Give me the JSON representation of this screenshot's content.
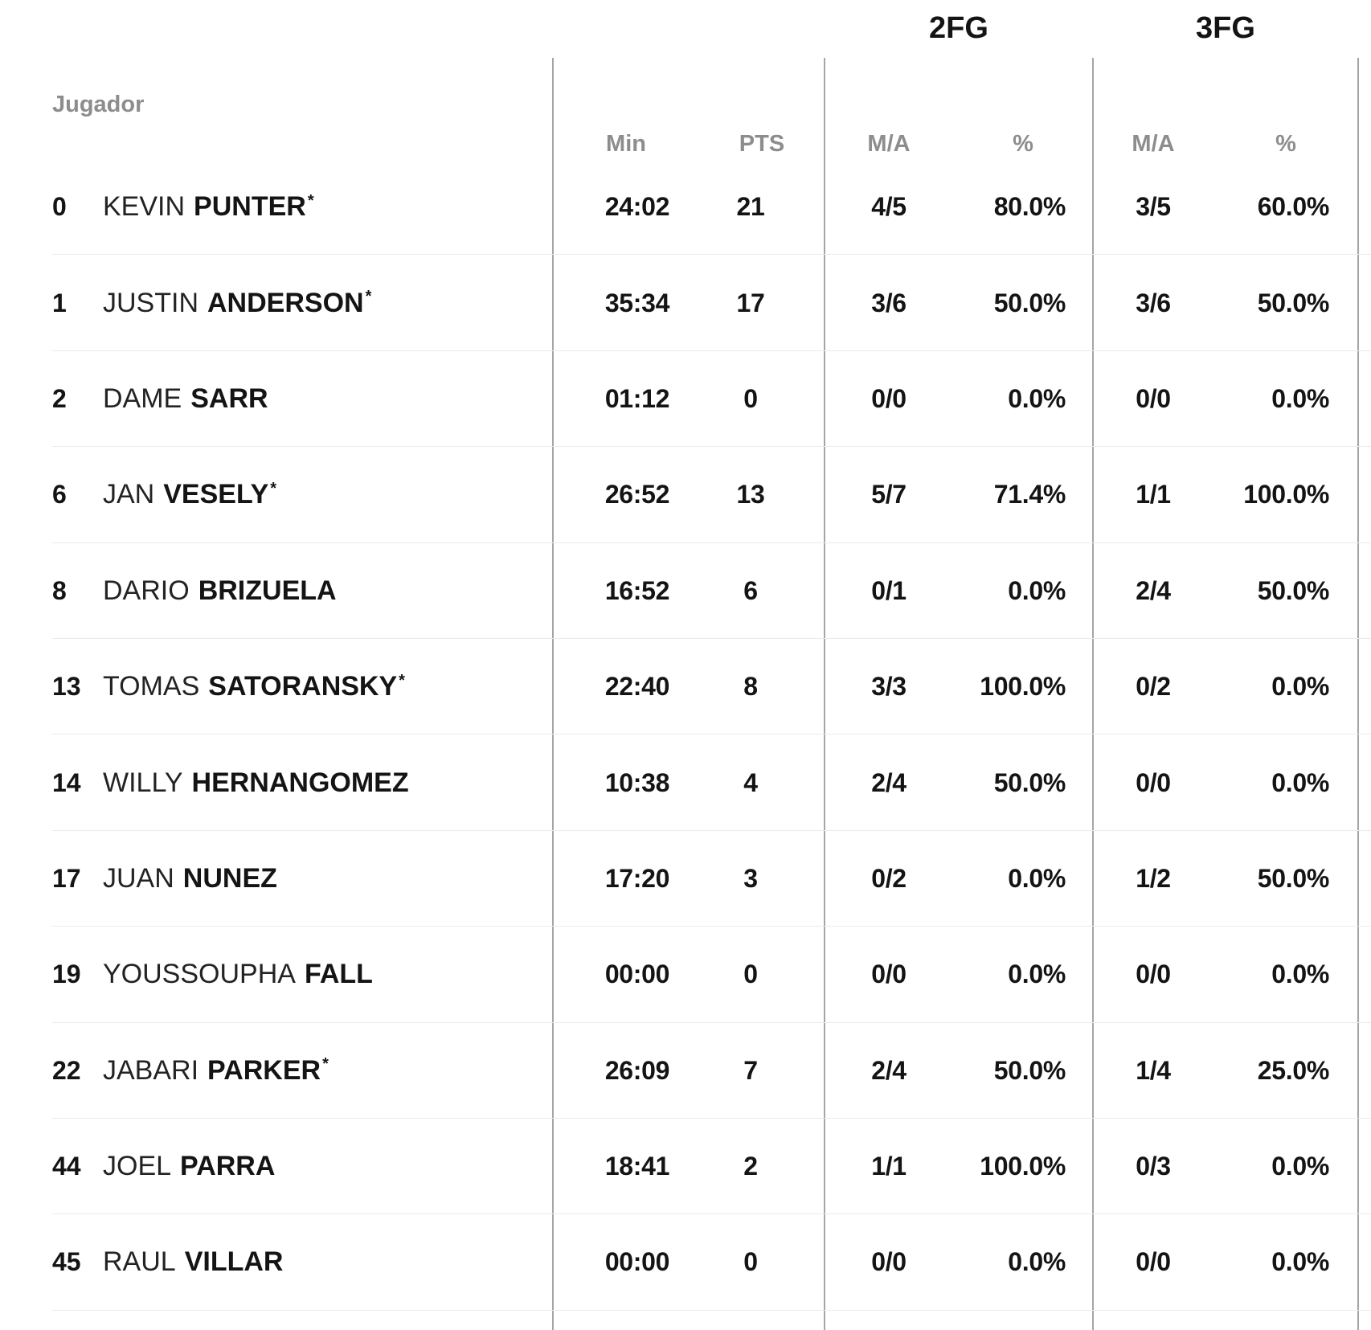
{
  "colors": {
    "background": "#ffffff",
    "text": "#141414",
    "first_name": "#232323",
    "muted_header": "#8d8d8d",
    "column_divider": "#a5a5a5",
    "row_separator": "#ebebeb"
  },
  "table": {
    "player_column_header": "Jugador",
    "group_headers": {
      "fg2": "2FG",
      "fg3": "3FG"
    },
    "sub_headers": {
      "min": "Min",
      "pts": "PTS",
      "ma": "M/A",
      "pct": "%"
    },
    "starter_marker": "*",
    "rows": [
      {
        "number": "0",
        "first_name": "KEVIN",
        "last_name": "PUNTER",
        "starter": true,
        "min": "24:02",
        "pts": "21",
        "fg2_ma": "4/5",
        "fg2_pct": "80.0%",
        "fg3_ma": "3/5",
        "fg3_pct": "60.0%"
      },
      {
        "number": "1",
        "first_name": "JUSTIN",
        "last_name": "ANDERSON",
        "starter": true,
        "min": "35:34",
        "pts": "17",
        "fg2_ma": "3/6",
        "fg2_pct": "50.0%",
        "fg3_ma": "3/6",
        "fg3_pct": "50.0%"
      },
      {
        "number": "2",
        "first_name": "DAME",
        "last_name": "SARR",
        "starter": false,
        "min": "01:12",
        "pts": "0",
        "fg2_ma": "0/0",
        "fg2_pct": "0.0%",
        "fg3_ma": "0/0",
        "fg3_pct": "0.0%"
      },
      {
        "number": "6",
        "first_name": "JAN",
        "last_name": "VESELY",
        "starter": true,
        "min": "26:52",
        "pts": "13",
        "fg2_ma": "5/7",
        "fg2_pct": "71.4%",
        "fg3_ma": "1/1",
        "fg3_pct": "100.0%"
      },
      {
        "number": "8",
        "first_name": "DARIO",
        "last_name": "BRIZUELA",
        "starter": false,
        "min": "16:52",
        "pts": "6",
        "fg2_ma": "0/1",
        "fg2_pct": "0.0%",
        "fg3_ma": "2/4",
        "fg3_pct": "50.0%"
      },
      {
        "number": "13",
        "first_name": "TOMAS",
        "last_name": "SATORANSKY",
        "starter": true,
        "min": "22:40",
        "pts": "8",
        "fg2_ma": "3/3",
        "fg2_pct": "100.0%",
        "fg3_ma": "0/2",
        "fg3_pct": "0.0%"
      },
      {
        "number": "14",
        "first_name": "WILLY",
        "last_name": "HERNANGOMEZ",
        "starter": false,
        "min": "10:38",
        "pts": "4",
        "fg2_ma": "2/4",
        "fg2_pct": "50.0%",
        "fg3_ma": "0/0",
        "fg3_pct": "0.0%"
      },
      {
        "number": "17",
        "first_name": "JUAN",
        "last_name": "NUNEZ",
        "starter": false,
        "min": "17:20",
        "pts": "3",
        "fg2_ma": "0/2",
        "fg2_pct": "0.0%",
        "fg3_ma": "1/2",
        "fg3_pct": "50.0%"
      },
      {
        "number": "19",
        "first_name": "YOUSSOUPHA",
        "last_name": "FALL",
        "starter": false,
        "min": "00:00",
        "pts": "0",
        "fg2_ma": "0/0",
        "fg2_pct": "0.0%",
        "fg3_ma": "0/0",
        "fg3_pct": "0.0%"
      },
      {
        "number": "22",
        "first_name": "JABARI",
        "last_name": "PARKER",
        "starter": true,
        "min": "26:09",
        "pts": "7",
        "fg2_ma": "2/4",
        "fg2_pct": "50.0%",
        "fg3_ma": "1/4",
        "fg3_pct": "25.0%"
      },
      {
        "number": "44",
        "first_name": "JOEL",
        "last_name": "PARRA",
        "starter": false,
        "min": "18:41",
        "pts": "2",
        "fg2_ma": "1/1",
        "fg2_pct": "100.0%",
        "fg3_ma": "0/3",
        "fg3_pct": "0.0%"
      },
      {
        "number": "45",
        "first_name": "RAUL",
        "last_name": "VILLAR",
        "starter": false,
        "min": "00:00",
        "pts": "0",
        "fg2_ma": "0/0",
        "fg2_pct": "0.0%",
        "fg3_ma": "0/0",
        "fg3_pct": "0.0%"
      }
    ]
  }
}
